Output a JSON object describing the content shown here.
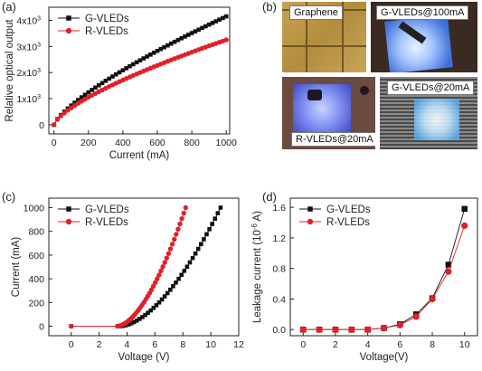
{
  "panel_labels": [
    "(a)",
    "(b)",
    "(c)",
    "(d)"
  ],
  "colors": {
    "g_series": "#111111",
    "r_series": "#e0202a"
  },
  "photos": {
    "captions": [
      "Graphene",
      "G-VLEDs@100mA",
      "R-VLEDs@20mA",
      "G-VLEDs@20mA"
    ]
  },
  "chart_data": [
    {
      "type": "line",
      "panel": "(a)",
      "xlabel": "Current (mA)",
      "ylabel": "Relative optical output",
      "xlim": [
        -30,
        1020
      ],
      "ylim": [
        -350,
        4500
      ],
      "x_ticks": [
        0,
        200,
        400,
        600,
        800,
        1000
      ],
      "y_ticks": [
        0,
        1000,
        2000,
        3000,
        4000
      ],
      "y_tick_labels": [
        "0",
        "1x10",
        "2x10",
        "3x10",
        "4x10"
      ],
      "y_tick_exponent": "3",
      "legend": "top-left",
      "series": [
        {
          "name": "G-VLEDs",
          "marker": "square",
          "color": "#111111",
          "k": 4.15,
          "p": 0.75,
          "step": 20
        },
        {
          "name": "R-VLEDs",
          "marker": "circle",
          "color": "#e0202a",
          "k": 3.25,
          "p": 0.7,
          "step": 20
        }
      ]
    },
    {
      "type": "line",
      "panel": "(c)",
      "xlabel": "Voltage (V)",
      "ylabel": "Current (mA)",
      "xlim": [
        -1.6,
        12
      ],
      "ylim": [
        -80,
        1080
      ],
      "x_ticks": [
        0,
        2,
        4,
        6,
        8,
        10,
        12
      ],
      "y_ticks": [
        0,
        200,
        400,
        600,
        800,
        1000
      ],
      "legend": "top-left",
      "series": [
        {
          "name": "G-VLEDs",
          "marker": "square",
          "color": "#111111",
          "v0": 3.5,
          "v1": 10.7,
          "p": 1.7
        },
        {
          "name": "R-VLEDs",
          "marker": "circle",
          "color": "#e0202a",
          "v0": 3.3,
          "v1": 8.2,
          "p": 1.7
        }
      ]
    },
    {
      "type": "line",
      "panel": "(d)",
      "xlabel": "Voltage(V)",
      "ylabel": "Leakage current (10",
      "ylabel_exponent": "-6",
      "ylabel_unit": " A)",
      "xlim": [
        -0.8,
        10.8
      ],
      "ylim": [
        -0.08,
        1.72
      ],
      "x_ticks": [
        0,
        2,
        4,
        6,
        8,
        10
      ],
      "y_ticks": [
        0.0,
        0.4,
        0.8,
        1.2,
        1.6
      ],
      "y_tick_labels": [
        "0.0",
        "0.4",
        "0.8",
        "1.2",
        "1.6"
      ],
      "legend": "top-left",
      "series": [
        {
          "name": "G-VLEDs",
          "marker": "square",
          "color": "#111111",
          "x": [
            0,
            1,
            2,
            3,
            4,
            5,
            6,
            7,
            8,
            9,
            10
          ],
          "y": [
            0.0,
            0.0,
            0.0,
            0.0,
            0.0,
            0.02,
            0.07,
            0.2,
            0.41,
            0.85,
            1.58
          ]
        },
        {
          "name": "R-VLEDs",
          "marker": "circle",
          "color": "#e0202a",
          "x": [
            0,
            1,
            2,
            3,
            4,
            5,
            6,
            7,
            8,
            9,
            10
          ],
          "y": [
            0.0,
            0.0,
            0.0,
            0.0,
            0.0,
            0.02,
            0.06,
            0.17,
            0.4,
            0.76,
            1.36
          ]
        }
      ]
    }
  ]
}
